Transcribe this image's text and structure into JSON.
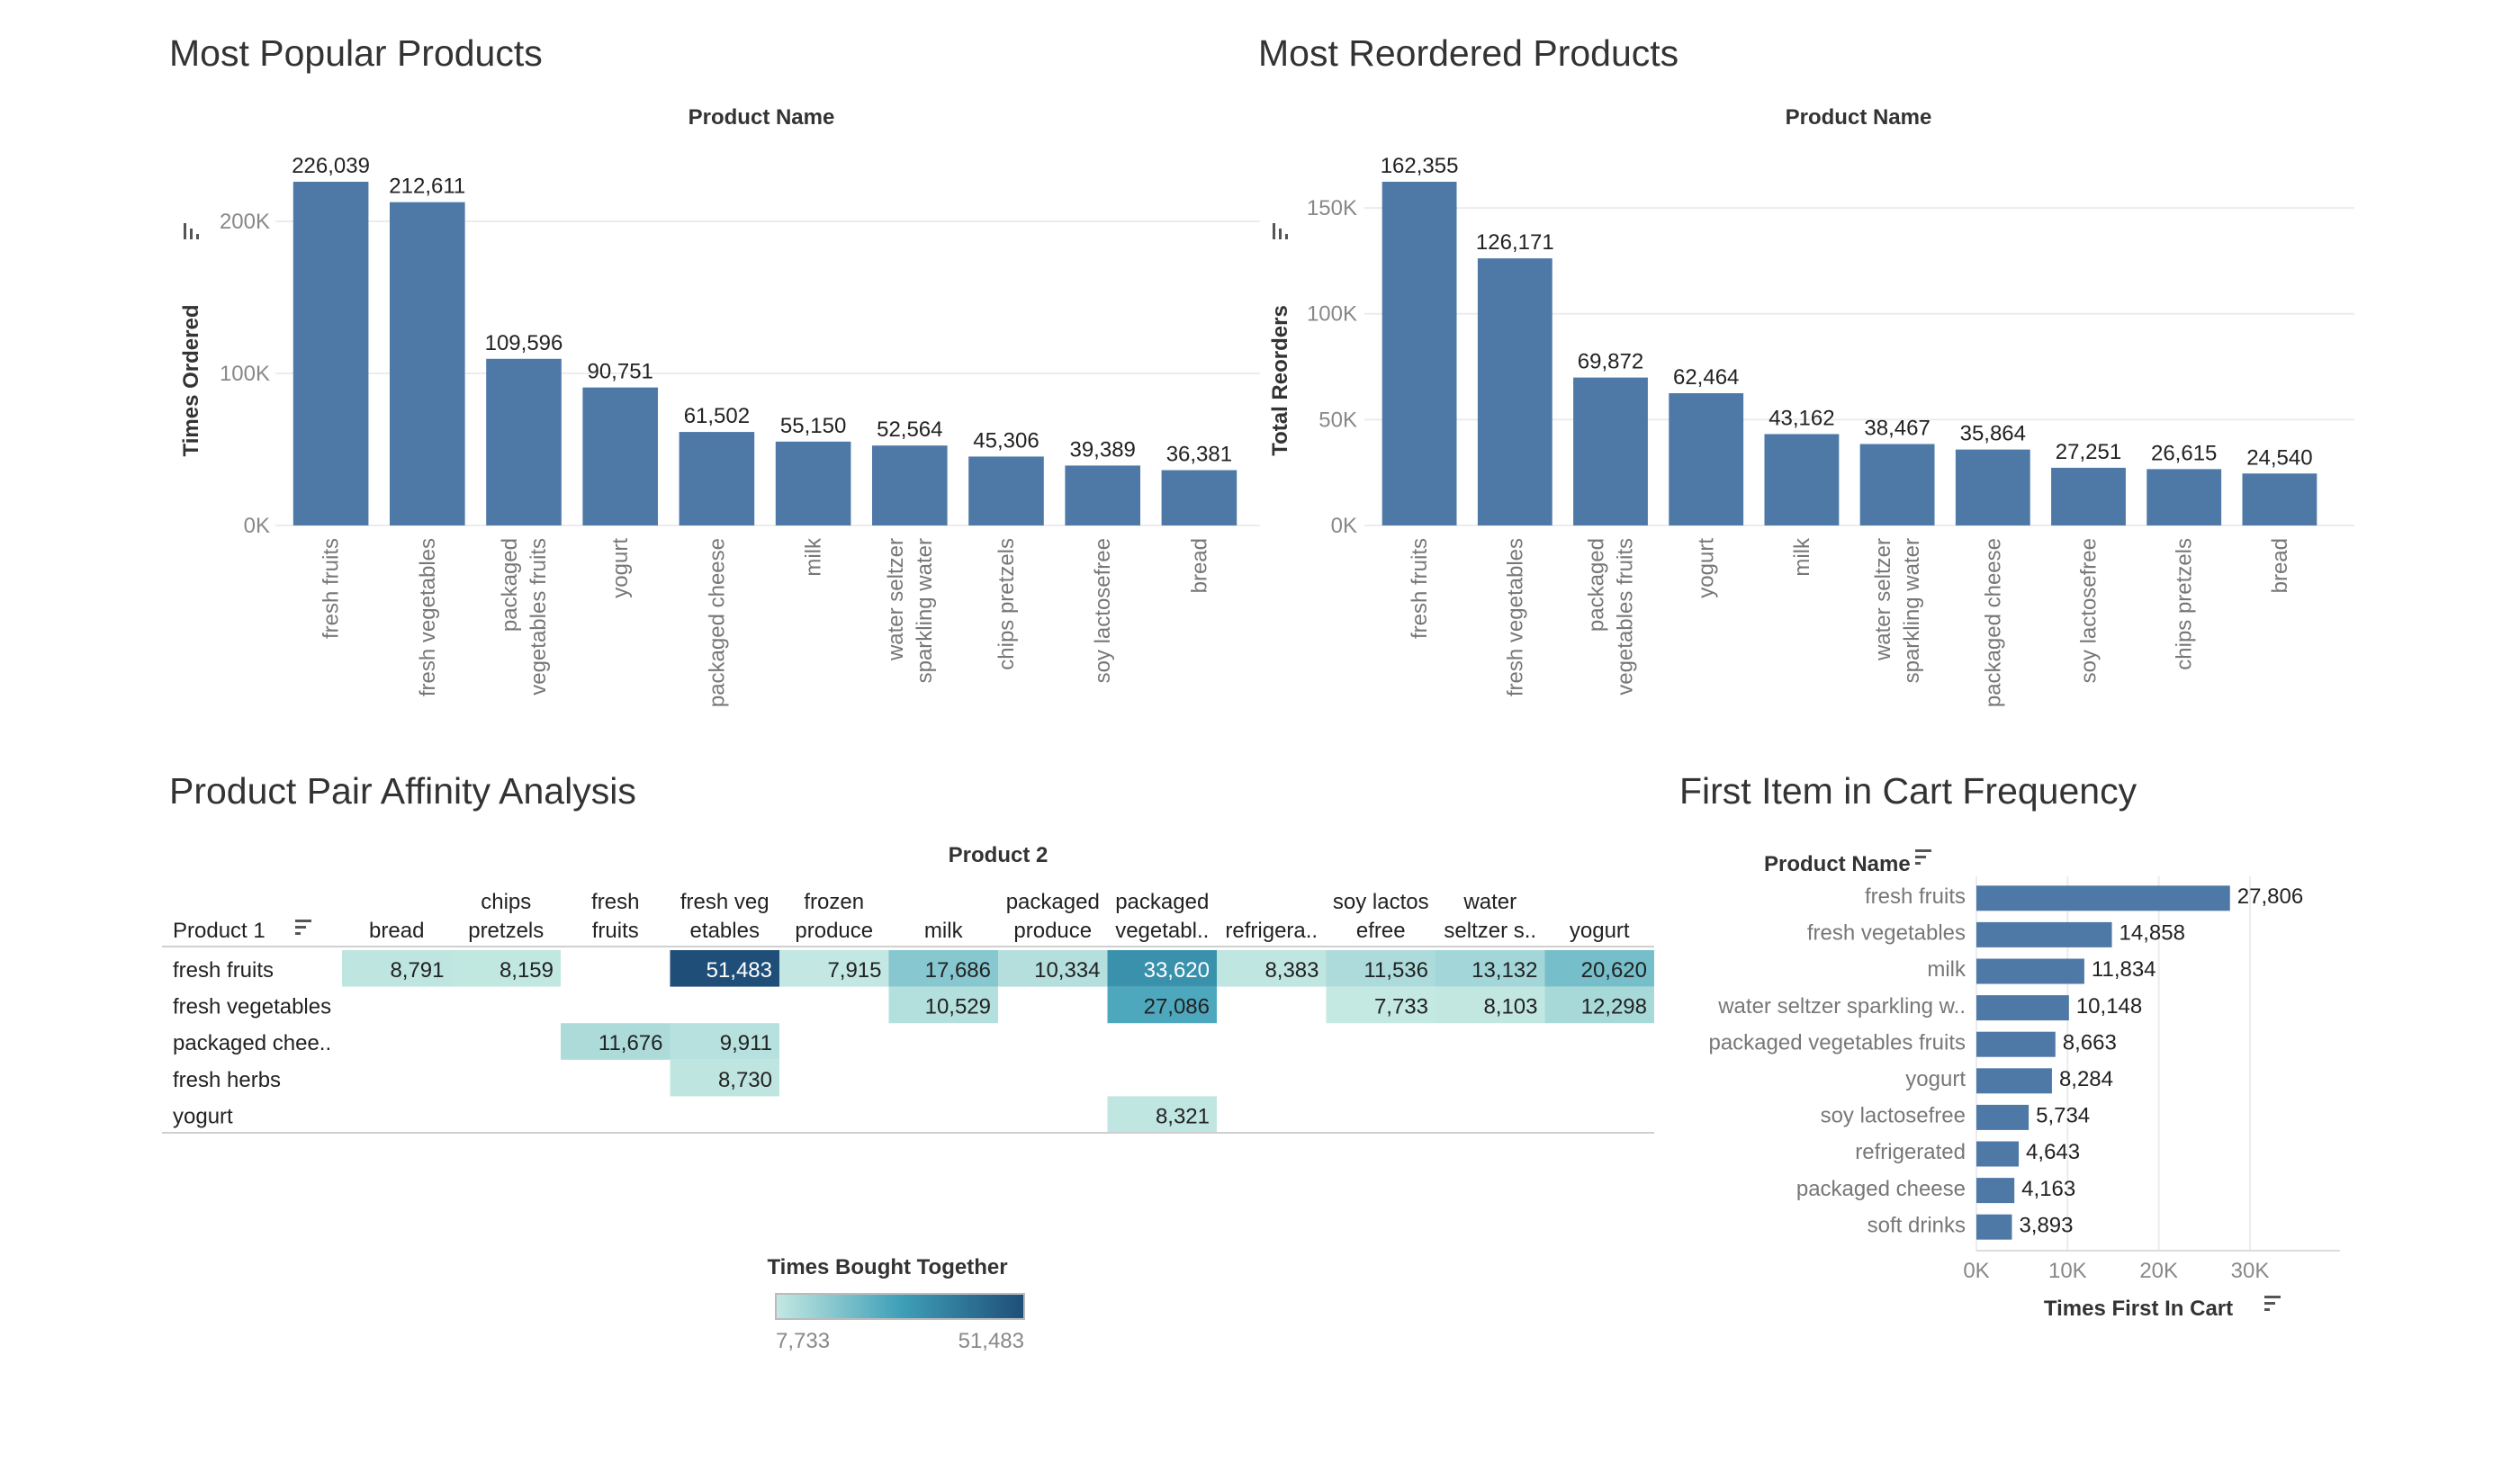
{
  "panels": {
    "popular": {
      "title": "Most Popular Products"
    },
    "reordered": {
      "title": "Most Reordered Products"
    },
    "affinity": {
      "title": "Product Pair Affinity Analysis"
    },
    "first_item": {
      "title": "First Item in Cart Frequency"
    }
  },
  "colors": {
    "bar": "#4e79a7",
    "heat_low": "#c4e8e2",
    "heat_mid": "#3fa0b8",
    "heat_high": "#1f4e79",
    "grid": "#ececec"
  },
  "chart_data": [
    {
      "id": "popular",
      "type": "bar",
      "title": "Most Popular Products",
      "header": "Product Name",
      "ylabel": "Times Ordered",
      "ylim": [
        0,
        226039
      ],
      "yticks": [
        {
          "v": 0,
          "label": "0K"
        },
        {
          "v": 100000,
          "label": "100K"
        },
        {
          "v": 200000,
          "label": "200K"
        }
      ],
      "categories": [
        [
          "fresh fruits"
        ],
        [
          "fresh vegetables"
        ],
        [
          "packaged",
          "vegetables fruits"
        ],
        [
          "yogurt"
        ],
        [
          "packaged cheese"
        ],
        [
          "milk"
        ],
        [
          "water seltzer",
          "sparkling water"
        ],
        [
          "chips pretzels"
        ],
        [
          "soy lactosefree"
        ],
        [
          "bread"
        ]
      ],
      "values": [
        226039,
        212611,
        109596,
        90751,
        61502,
        55150,
        52564,
        45306,
        39389,
        36381
      ],
      "labels": [
        "226,039",
        "212,611",
        "109,596",
        "90,751",
        "61,502",
        "55,150",
        "52,564",
        "45,306",
        "39,389",
        "36,381"
      ]
    },
    {
      "id": "reordered",
      "type": "bar",
      "title": "Most Reordered Products",
      "header": "Product Name",
      "ylabel": "Total Reorders",
      "ylim": [
        0,
        162355
      ],
      "yticks": [
        {
          "v": 0,
          "label": "0K"
        },
        {
          "v": 50000,
          "label": "50K"
        },
        {
          "v": 100000,
          "label": "100K"
        },
        {
          "v": 150000,
          "label": "150K"
        }
      ],
      "categories": [
        [
          "fresh fruits"
        ],
        [
          "fresh vegetables"
        ],
        [
          "packaged",
          "vegetables fruits"
        ],
        [
          "yogurt"
        ],
        [
          "milk"
        ],
        [
          "water seltzer",
          "sparkling water"
        ],
        [
          "packaged cheese"
        ],
        [
          "soy lactosefree"
        ],
        [
          "chips pretzels"
        ],
        [
          "bread"
        ]
      ],
      "values": [
        162355,
        126171,
        69872,
        62464,
        43162,
        38467,
        35864,
        27251,
        26615,
        24540
      ],
      "labels": [
        "162,355",
        "126,171",
        "69,872",
        "62,464",
        "43,162",
        "38,467",
        "35,864",
        "27,251",
        "26,615",
        "24,540"
      ]
    },
    {
      "id": "affinity",
      "type": "heatmap",
      "title": "Product Pair Affinity Analysis",
      "col_header": "Product 2",
      "row_header": "Product 1",
      "columns": [
        [
          "bread"
        ],
        [
          "chips",
          "pretzels"
        ],
        [
          "fresh",
          "fruits"
        ],
        [
          "fresh veg",
          "etables"
        ],
        [
          "frozen",
          "produce"
        ],
        [
          "milk"
        ],
        [
          "packaged",
          "produce"
        ],
        [
          "packaged",
          "vegetabl.."
        ],
        [
          "refrigera.."
        ],
        [
          "soy lactos",
          "efree"
        ],
        [
          "water",
          "seltzer s.."
        ],
        [
          "yogurt"
        ]
      ],
      "rows": [
        "fresh fruits",
        "fresh vegetables",
        "packaged chee..",
        "fresh herbs",
        "yogurt"
      ],
      "values": [
        [
          8791,
          8159,
          null,
          51483,
          7915,
          17686,
          10334,
          33620,
          8383,
          11536,
          13132,
          20620
        ],
        [
          null,
          null,
          null,
          null,
          null,
          10529,
          null,
          27086,
          null,
          7733,
          8103,
          12298
        ],
        [
          null,
          null,
          11676,
          9911,
          null,
          null,
          null,
          null,
          null,
          null,
          null,
          null
        ],
        [
          null,
          null,
          null,
          8730,
          null,
          null,
          null,
          null,
          null,
          null,
          null,
          null
        ],
        [
          null,
          null,
          null,
          null,
          null,
          null,
          null,
          8321,
          null,
          null,
          null,
          null
        ]
      ],
      "labels": [
        [
          "8,791",
          "8,159",
          "",
          "51,483",
          "7,915",
          "17,686",
          "10,334",
          "33,620",
          "8,383",
          "11,536",
          "13,132",
          "20,620"
        ],
        [
          "",
          "",
          "",
          "",
          "",
          "10,529",
          "",
          "27,086",
          "",
          "7,733",
          "8,103",
          "12,298"
        ],
        [
          "",
          "",
          "11,676",
          "9,911",
          "",
          "",
          "",
          "",
          "",
          "",
          "",
          ""
        ],
        [
          "",
          "",
          "",
          "8,730",
          "",
          "",
          "",
          "",
          "",
          "",
          "",
          ""
        ],
        [
          "",
          "",
          "",
          "",
          "",
          "",
          "",
          "8,321",
          "",
          "",
          "",
          ""
        ]
      ],
      "legend": {
        "title": "Times Bought Together",
        "min": 7733,
        "max": 51483,
        "min_label": "7,733",
        "max_label": "51,483"
      }
    },
    {
      "id": "first_item",
      "type": "bar",
      "orientation": "horizontal",
      "title": "First Item in Cart Frequency",
      "header": "Product Name",
      "xlabel": "Times First In Cart",
      "xlim": [
        0,
        30000
      ],
      "xticks": [
        {
          "v": 0,
          "label": "0K"
        },
        {
          "v": 10000,
          "label": "10K"
        },
        {
          "v": 20000,
          "label": "20K"
        },
        {
          "v": 30000,
          "label": "30K"
        }
      ],
      "categories": [
        "fresh fruits",
        "fresh vegetables",
        "milk",
        "water seltzer sparkling w..",
        "packaged vegetables fruits",
        "yogurt",
        "soy lactosefree",
        "refrigerated",
        "packaged cheese",
        "soft drinks"
      ],
      "values": [
        27806,
        14858,
        11834,
        10148,
        8663,
        8284,
        5734,
        4643,
        4163,
        3893
      ],
      "labels": [
        "27,806",
        "14,858",
        "11,834",
        "10,148",
        "8,663",
        "8,284",
        "5,734",
        "4,643",
        "4,163",
        "3,893"
      ]
    }
  ]
}
